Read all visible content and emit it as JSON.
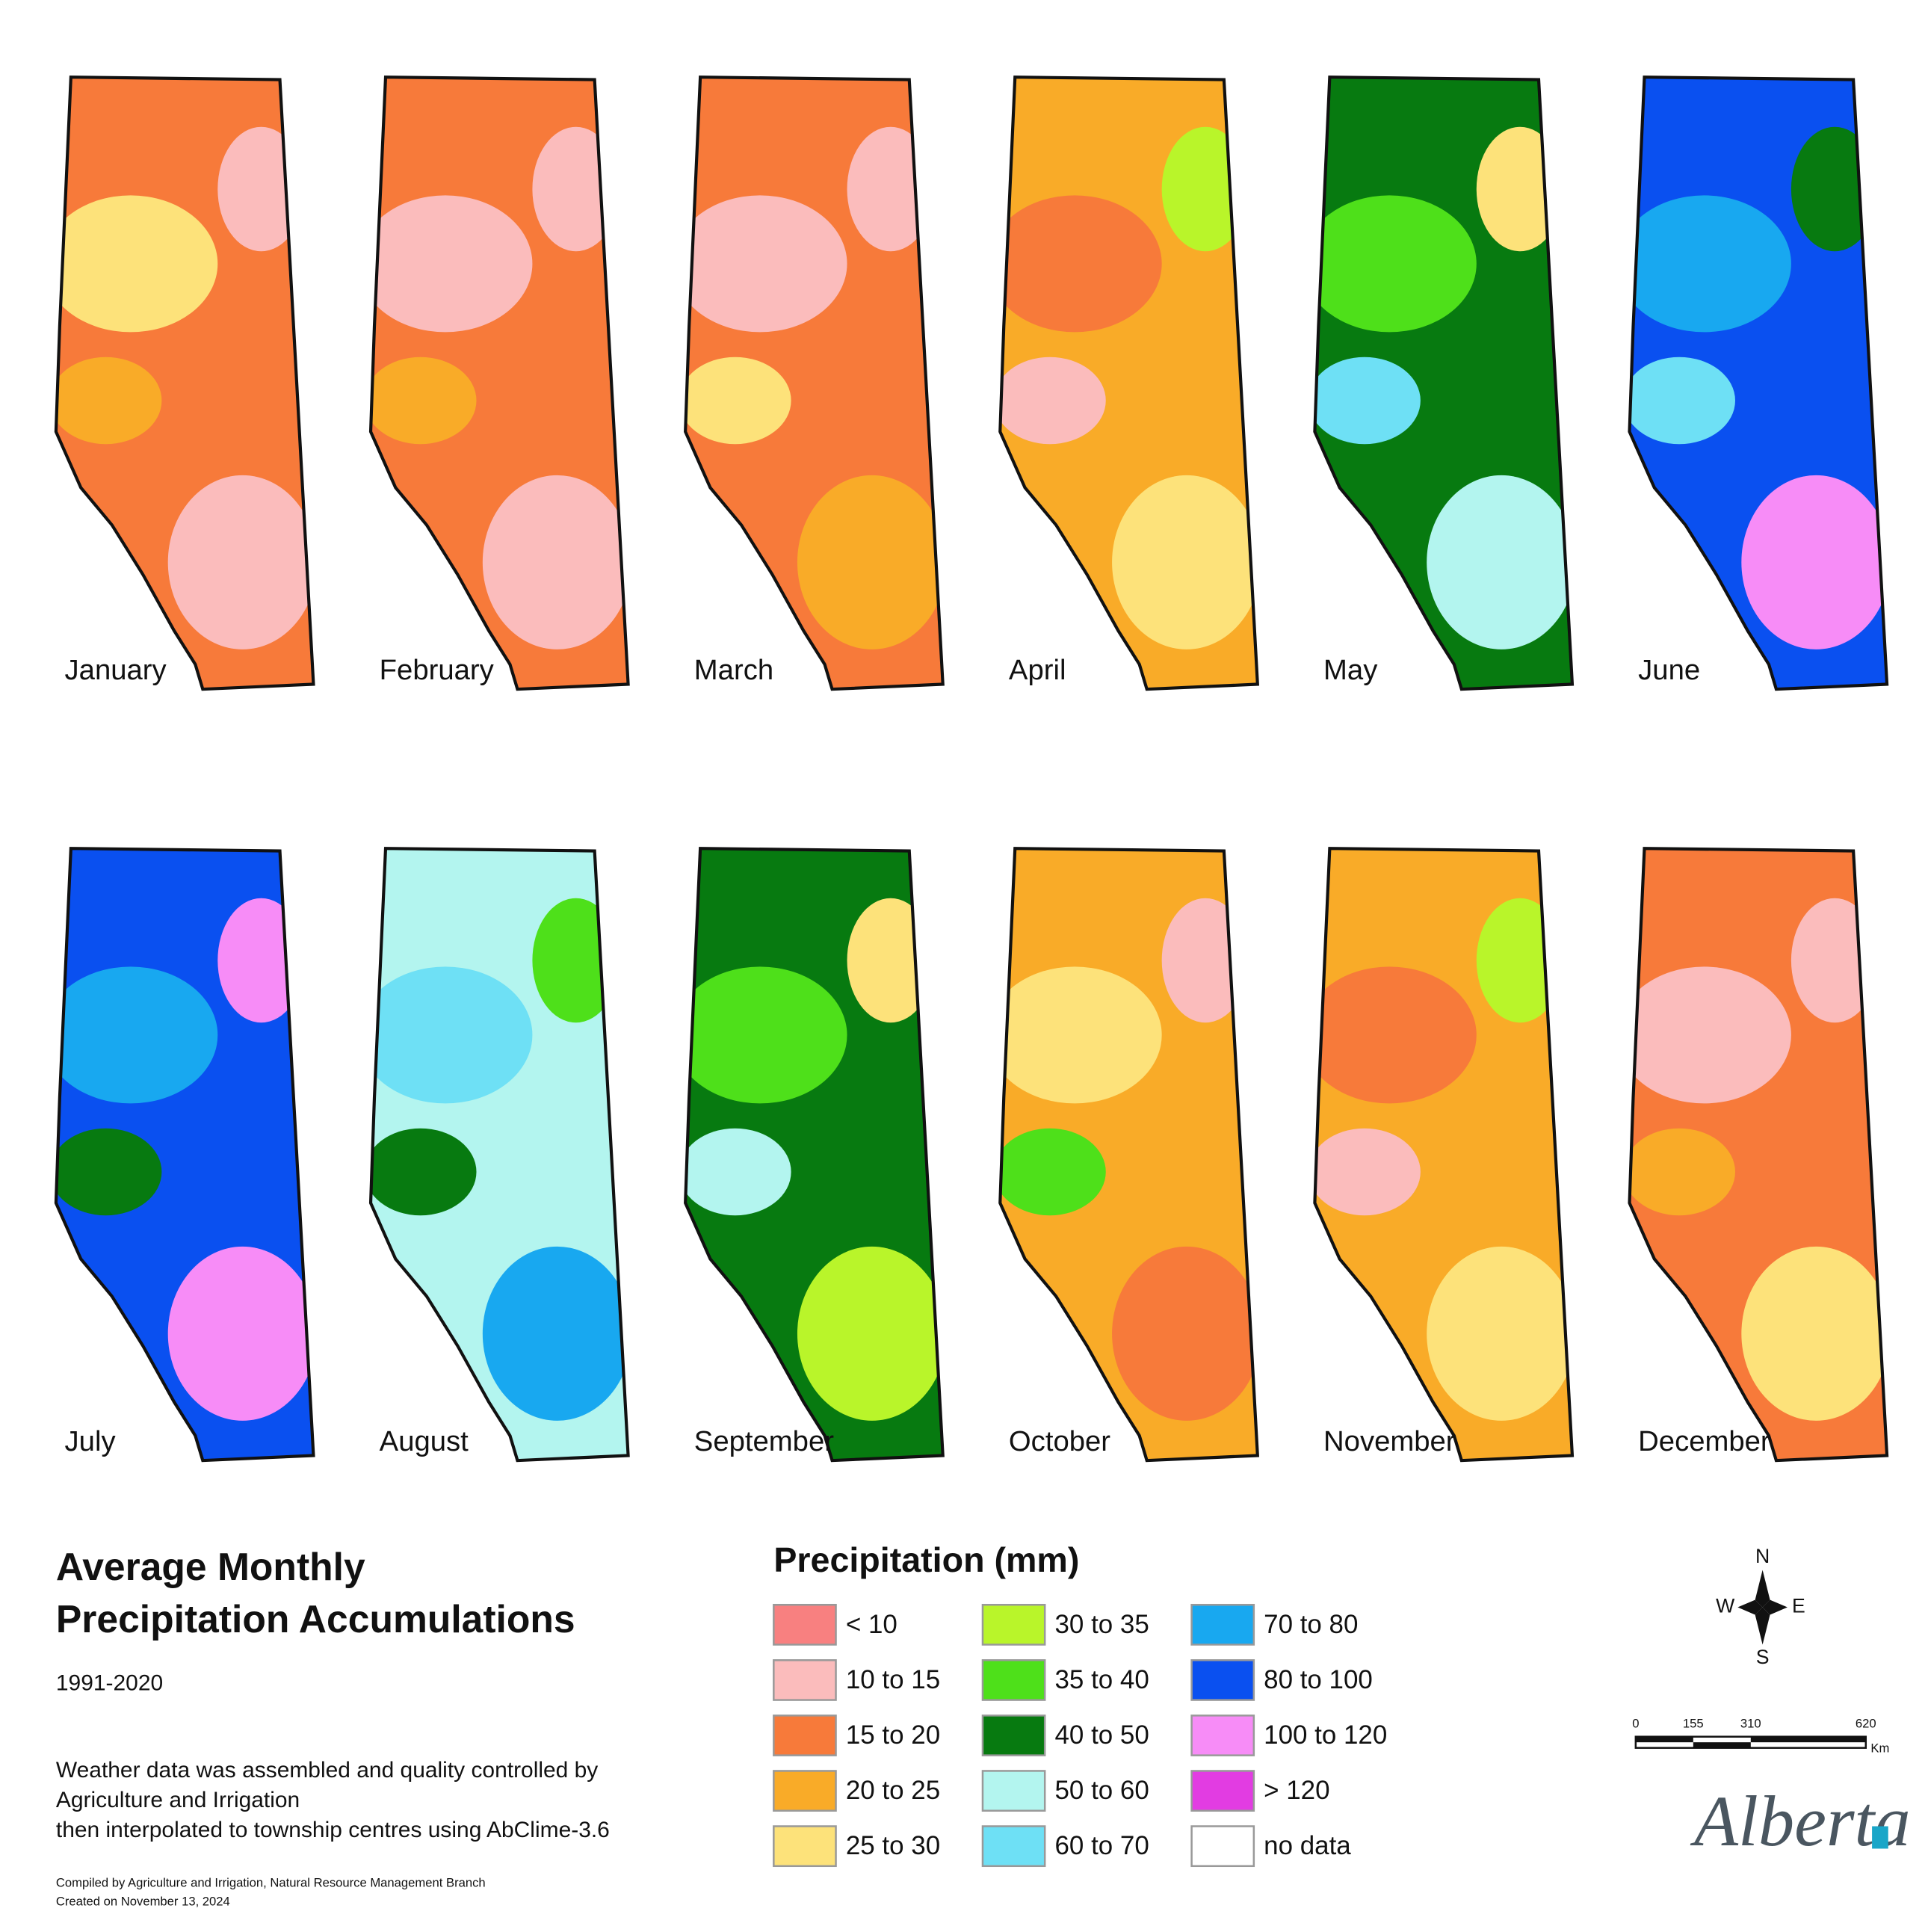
{
  "title_lines": [
    "Average Monthly",
    "Precipitation Accumulations"
  ],
  "period": "1991-2020",
  "description_lines": [
    "Weather data was assembled and quality controlled by",
    "Agriculture and Irrigation",
    "then interpolated to township centres using AbClime-3.6"
  ],
  "credit_lines": [
    "Compiled by Agriculture and Irrigation, Natural Resource Management Branch",
    "Created on November 13, 2024"
  ],
  "months": [
    "January",
    "February",
    "March",
    "April",
    "May",
    "June",
    "July",
    "August",
    "September",
    "October",
    "November",
    "December"
  ],
  "legend": {
    "title": "Precipitation (mm)",
    "items": [
      {
        "label": "< 10",
        "color": "#f88080"
      },
      {
        "label": "10 to 15",
        "color": "#fbbcbc"
      },
      {
        "label": "15 to 20",
        "color": "#f77a3a"
      },
      {
        "label": "20 to 25",
        "color": "#f9ab28"
      },
      {
        "label": "25 to 30",
        "color": "#fde27a"
      },
      {
        "label": "30 to 35",
        "color": "#b9f52a"
      },
      {
        "label": "35 to 40",
        "color": "#4ee01a"
      },
      {
        "label": "40 to 50",
        "color": "#077a10"
      },
      {
        "label": "50 to  60",
        "color": "#b3f5ef"
      },
      {
        "label": "60 to 70",
        "color": "#6ee0f5"
      },
      {
        "label": "70 to 80",
        "color": "#18a8f0"
      },
      {
        "label": "80 to 100",
        "color": "#0a50f0"
      },
      {
        "label": "100 to 120",
        "color": "#f78cf7"
      },
      {
        "label": "> 120",
        "color": "#e23ce2"
      },
      {
        "label": "no data",
        "color": "#ffffff"
      }
    ]
  },
  "compass": {
    "n": "N",
    "s": "S",
    "e": "E",
    "w": "W"
  },
  "scale_bar": {
    "ticks": [
      0,
      155,
      310,
      620
    ],
    "unit": "Km"
  },
  "logo": "Alberta"
}
